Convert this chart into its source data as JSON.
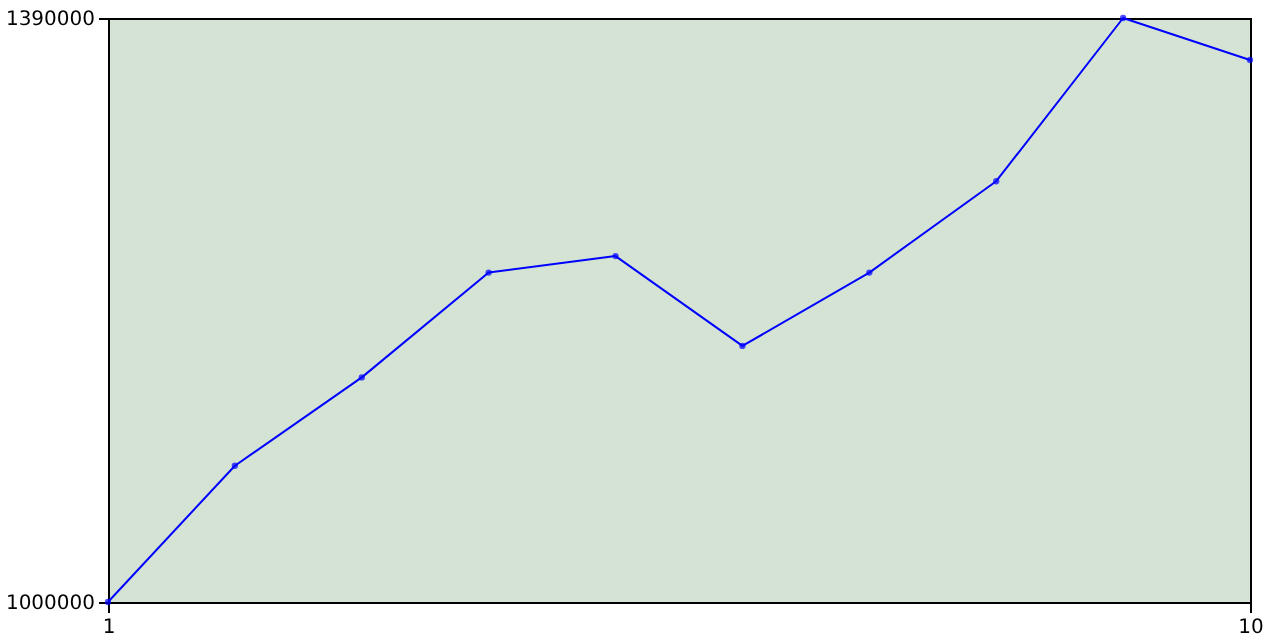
{
  "chart_data": {
    "type": "line",
    "x": [
      1,
      2,
      3,
      4,
      5,
      6,
      7,
      8,
      9,
      10
    ],
    "series": [
      {
        "color": "#0000ff",
        "values": [
          1000000,
          1091000,
          1150000,
          1220000,
          1231000,
          1171000,
          1220000,
          1281000,
          1390000,
          1362000
        ]
      }
    ],
    "xlim": [
      1,
      10
    ],
    "xticks": [
      1,
      10
    ],
    "ylim": [
      1000000,
      1390000
    ],
    "yticks": [
      1000000,
      1390000
    ],
    "grid": false,
    "marker": "circle",
    "line_style": "solid",
    "legend": false
  }
}
